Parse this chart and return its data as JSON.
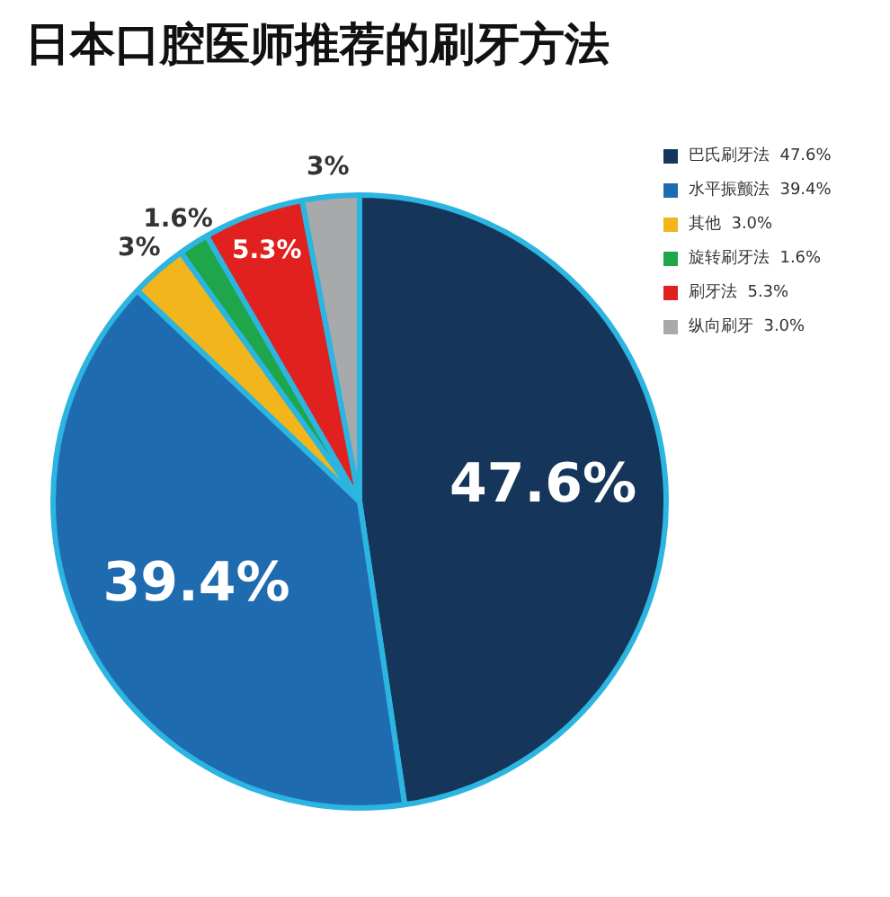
{
  "chart_data": {
    "type": "pie",
    "title": "日本口腔医师推荐的刷牙方法",
    "categories": [
      "巴氏刷牙法  47.6%",
      "水平振颤法  39.4%",
      "其他  3.0%",
      "旋转刷牙法  1.6%",
      "刷牙法  5.3%",
      "纵向刷牙  3.0%"
    ],
    "values": [
      47.6,
      39.4,
      3.0,
      1.6,
      5.3,
      3.0
    ],
    "colors": [
      "#15365a",
      "#1f6bb0",
      "#f2b51c",
      "#1fa64a",
      "#e0211f",
      "#a8a9ab"
    ],
    "value_labels": [
      "47.6%",
      "39.4%",
      "3%",
      "1.6%",
      "5.3%",
      "3%"
    ],
    "legend": "top right"
  }
}
